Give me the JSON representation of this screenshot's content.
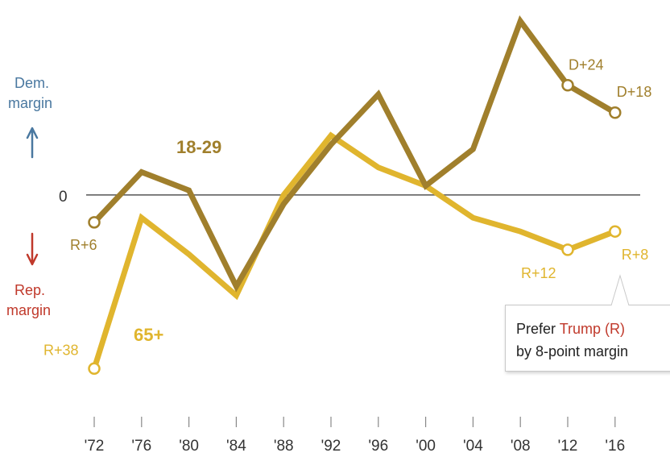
{
  "chart_data": {
    "type": "line",
    "x": [
      "'72",
      "'76",
      "'80",
      "'84",
      "'88",
      "'92",
      "'96",
      "'00",
      "'04",
      "'08",
      "'12",
      "'16"
    ],
    "ylim": [
      -45,
      40
    ],
    "zero_label": "0",
    "dem_label": [
      "Dem.",
      "margin"
    ],
    "rep_label": [
      "Rep.",
      "margin"
    ],
    "colors": {
      "young": "#a07f2c",
      "old": "#e0b52e",
      "dem": "#4a78a0",
      "rep": "#c0392b",
      "axis": "#555555"
    },
    "series": [
      {
        "name": "18-29",
        "values": [
          -6,
          5,
          1,
          -20,
          -2,
          11,
          22,
          2,
          10,
          38,
          24,
          18
        ],
        "marked": [
          0,
          10,
          11
        ],
        "point_labels": [
          {
            "index": 0,
            "text": "R+6"
          },
          {
            "index": 10,
            "text": "D+24"
          },
          {
            "index": 11,
            "text": "D+18"
          }
        ]
      },
      {
        "name": "65+",
        "values": [
          -38,
          -5,
          -13,
          -22,
          0,
          13,
          6,
          2,
          -5,
          -8,
          -12,
          -8
        ],
        "marked": [
          0,
          10,
          11
        ],
        "point_labels": [
          {
            "index": 0,
            "text": "R+38"
          },
          {
            "index": 10,
            "text": "R+12"
          },
          {
            "index": 11,
            "text": "R+8"
          }
        ]
      }
    ],
    "callout": {
      "prefix": "Prefer",
      "highlight": "Trump (R)",
      "line2": "by 8-point margin"
    }
  }
}
